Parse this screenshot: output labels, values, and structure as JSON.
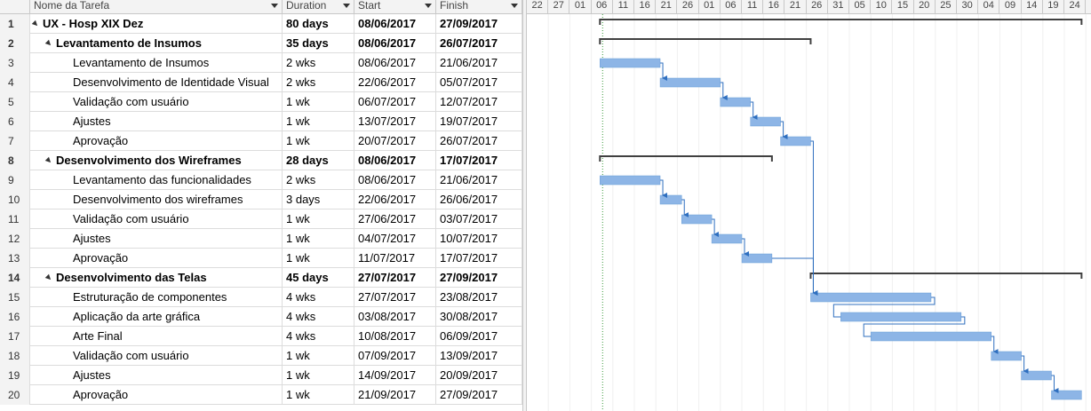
{
  "columns": {
    "name": "Nome da Tarefa",
    "duration": "Duration",
    "start": "Start",
    "finish": "Finish"
  },
  "tasks": [
    {
      "id": "1",
      "name": "UX - Hosp XIX Dez",
      "duration": "80 days",
      "start": "08/06/2017",
      "finish": "27/09/2017",
      "level": 0,
      "summary": true
    },
    {
      "id": "2",
      "name": "Levantamento de Insumos",
      "duration": "35 days",
      "start": "08/06/2017",
      "finish": "26/07/2017",
      "level": 1,
      "summary": true
    },
    {
      "id": "3",
      "name": "Levantamento de Insumos",
      "duration": "2 wks",
      "start": "08/06/2017",
      "finish": "21/06/2017",
      "level": 2,
      "summary": false
    },
    {
      "id": "4",
      "name": "Desenvolvimento de Identidade Visual",
      "duration": "2 wks",
      "start": "22/06/2017",
      "finish": "05/07/2017",
      "level": 2,
      "summary": false
    },
    {
      "id": "5",
      "name": "Validação com usuário",
      "duration": "1 wk",
      "start": "06/07/2017",
      "finish": "12/07/2017",
      "level": 2,
      "summary": false
    },
    {
      "id": "6",
      "name": "Ajustes",
      "duration": "1 wk",
      "start": "13/07/2017",
      "finish": "19/07/2017",
      "level": 2,
      "summary": false
    },
    {
      "id": "7",
      "name": "Aprovação",
      "duration": "1 wk",
      "start": "20/07/2017",
      "finish": "26/07/2017",
      "level": 2,
      "summary": false
    },
    {
      "id": "8",
      "name": "Desenvolvimento dos Wireframes",
      "duration": "28 days",
      "start": "08/06/2017",
      "finish": "17/07/2017",
      "level": 1,
      "summary": true
    },
    {
      "id": "9",
      "name": "Levantamento das funcionalidades",
      "duration": "2 wks",
      "start": "08/06/2017",
      "finish": "21/06/2017",
      "level": 2,
      "summary": false
    },
    {
      "id": "10",
      "name": "Desenvolvimento dos wireframes",
      "duration": "3 days",
      "start": "22/06/2017",
      "finish": "26/06/2017",
      "level": 2,
      "summary": false
    },
    {
      "id": "11",
      "name": "Validação com usuário",
      "duration": "1 wk",
      "start": "27/06/2017",
      "finish": "03/07/2017",
      "level": 2,
      "summary": false
    },
    {
      "id": "12",
      "name": "Ajustes",
      "duration": "1 wk",
      "start": "04/07/2017",
      "finish": "10/07/2017",
      "level": 2,
      "summary": false
    },
    {
      "id": "13",
      "name": "Aprovação",
      "duration": "1 wk",
      "start": "11/07/2017",
      "finish": "17/07/2017",
      "level": 2,
      "summary": false
    },
    {
      "id": "14",
      "name": "Desenvolvimento das Telas",
      "duration": "45 days",
      "start": "27/07/2017",
      "finish": "27/09/2017",
      "level": 1,
      "summary": true
    },
    {
      "id": "15",
      "name": "Estruturação de componentes",
      "duration": "4 wks",
      "start": "27/07/2017",
      "finish": "23/08/2017",
      "level": 2,
      "summary": false
    },
    {
      "id": "16",
      "name": "Aplicação da arte gráfica",
      "duration": "4 wks",
      "start": "03/08/2017",
      "finish": "30/08/2017",
      "level": 2,
      "summary": false
    },
    {
      "id": "17",
      "name": "Arte Final",
      "duration": "4 wks",
      "start": "10/08/2017",
      "finish": "06/09/2017",
      "level": 2,
      "summary": false
    },
    {
      "id": "18",
      "name": "Validação com usuário",
      "duration": "1 wk",
      "start": "07/09/2017",
      "finish": "13/09/2017",
      "level": 2,
      "summary": false
    },
    {
      "id": "19",
      "name": "Ajustes",
      "duration": "1 wk",
      "start": "14/09/2017",
      "finish": "20/09/2017",
      "level": 2,
      "summary": false
    },
    {
      "id": "20",
      "name": "Aprovação",
      "duration": "1 wk",
      "start": "21/09/2017",
      "finish": "27/09/2017",
      "level": 2,
      "summary": false
    }
  ],
  "timescale": {
    "ticks": [
      "22",
      "27",
      "01",
      "06",
      "11",
      "16",
      "21",
      "26",
      "01",
      "06",
      "11",
      "16",
      "21",
      "26",
      "31",
      "05",
      "10",
      "15",
      "20",
      "25",
      "30",
      "04",
      "09",
      "14",
      "19",
      "24"
    ],
    "first_tick_date": "2017-05-22",
    "tick_days": 5
  },
  "dependencies": [
    [
      3,
      4
    ],
    [
      4,
      5
    ],
    [
      5,
      6
    ],
    [
      6,
      7
    ],
    [
      7,
      15
    ],
    [
      9,
      10
    ],
    [
      10,
      11
    ],
    [
      11,
      12
    ],
    [
      12,
      13
    ],
    [
      13,
      15
    ],
    [
      15,
      16
    ],
    [
      16,
      17
    ],
    [
      17,
      18
    ],
    [
      18,
      19
    ],
    [
      19,
      20
    ]
  ],
  "colors": {
    "task_bar": "#8db5e6",
    "task_bar_border": "#6b9fd8",
    "summary_bar": "#404040",
    "link": "#2f6fbf",
    "header_bg": "#f3f3f3"
  }
}
